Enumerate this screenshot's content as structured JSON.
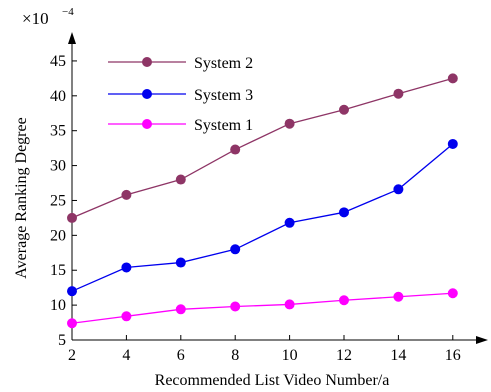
{
  "chart_data": {
    "type": "line",
    "title": "",
    "xlabel": "Recommended List Video Number/a",
    "ylabel": "Average Ranking Degree",
    "scale_multiplier": "×10",
    "scale_exponent": "−4",
    "x": [
      2,
      4,
      6,
      8,
      10,
      12,
      14,
      16
    ],
    "xlim": [
      2,
      17
    ],
    "ylim": [
      5,
      48
    ],
    "xticks": [
      2,
      4,
      6,
      8,
      10,
      12,
      14,
      16
    ],
    "yticks": [
      5,
      10,
      15,
      20,
      25,
      30,
      35,
      40,
      45
    ],
    "grid": false,
    "legend_position": "top-left",
    "series": [
      {
        "name": "System 2",
        "color": "#8e3566",
        "values": [
          22.5,
          25.8,
          28.0,
          32.3,
          36.0,
          38.0,
          40.3,
          42.5
        ]
      },
      {
        "name": "System 3",
        "color": "#0000ee",
        "values": [
          12.0,
          15.4,
          16.1,
          18.0,
          21.8,
          23.3,
          26.6,
          33.1
        ]
      },
      {
        "name": "System 1",
        "color": "#ff00ff",
        "values": [
          7.4,
          8.4,
          9.4,
          9.8,
          10.1,
          10.7,
          11.2,
          11.7
        ]
      }
    ]
  }
}
